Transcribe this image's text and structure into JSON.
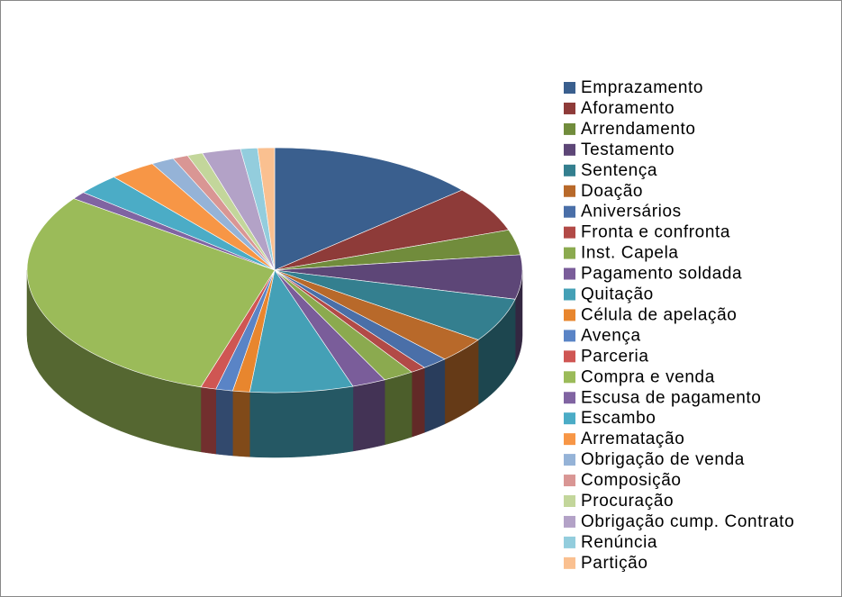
{
  "chart_data": {
    "type": "pie",
    "three_d": true,
    "legend": "right",
    "categories": [
      "Emprazamento",
      "Aforamento",
      "Arrendamento",
      "Testamento",
      "Sentença",
      "Doação",
      "Aniversários",
      "Fronta e confronta",
      "Inst. Capela",
      "Pagamento soldada",
      "Quitação",
      "Célula de apelação",
      "Avença",
      "Parceria",
      "Compra e venda",
      "Escusa de pagamento",
      "Escambo",
      "Arrematação",
      "Obrigação de venda",
      "Composição",
      "Procuração",
      "Obrigação cump. Contrato",
      "Renúncia",
      "Partição"
    ],
    "values": [
      13.6,
      6,
      3.3,
      5.8,
      5.8,
      3.3,
      1.7,
      1,
      2,
      2.2,
      6.7,
      1.1,
      1.1,
      1,
      30,
      1,
      2.8,
      3,
      1.5,
      1,
      1,
      2.5,
      1.1,
      1.1
    ],
    "colors": [
      "#3a5f8e",
      "#8e3b39",
      "#718c3c",
      "#5d4677",
      "#347f8f",
      "#b8692a",
      "#4a6fa8",
      "#b24a47",
      "#8baa4f",
      "#7a5d9a",
      "#44a0b6",
      "#e8862e",
      "#5a84c6",
      "#cf5653",
      "#9bbb59",
      "#8064a2",
      "#4bacc6",
      "#f79646",
      "#95b3d7",
      "#d99694",
      "#c3d69b",
      "#b3a2c7",
      "#93cddd",
      "#fac090"
    ]
  }
}
